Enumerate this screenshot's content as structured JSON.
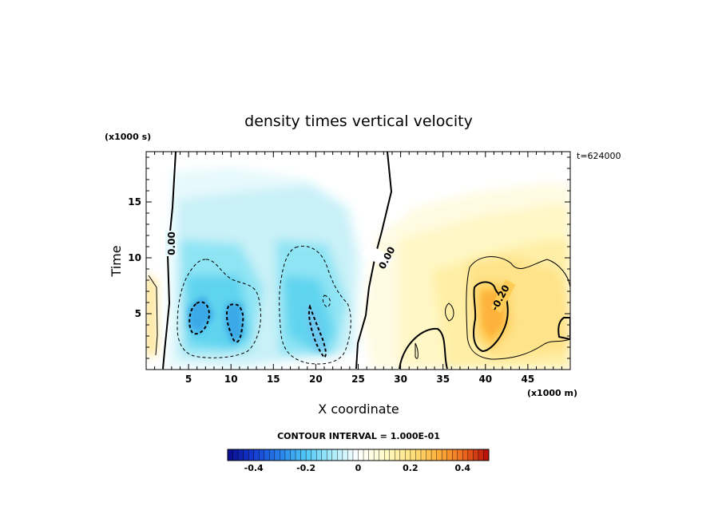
{
  "chart_data": {
    "type": "heatmap",
    "title": "density times vertical velocity",
    "xlabel": "X coordinate",
    "ylabel": "Time",
    "x_unit": "(x1000 m)",
    "y_unit": "(x1000 s)",
    "time_stamp": "t=624000",
    "xlim": [
      0,
      50
    ],
    "ylim": [
      0,
      19.5
    ],
    "x_ticks": [
      5,
      10,
      15,
      20,
      25,
      30,
      35,
      40,
      45
    ],
    "y_ticks": [
      5,
      10,
      15
    ],
    "contour_interval_label": "CONTOUR INTERVAL = 1.000E-01",
    "contour_labels": [
      {
        "text": "0.00",
        "x": 3,
        "y": 11.5
      },
      {
        "text": "0.00",
        "x": 28.5,
        "y": 10.3
      },
      {
        "text": "-0.20",
        "x": 42.8,
        "y": 6.0
      }
    ],
    "colorbar": {
      "min": -0.5,
      "max": 0.5,
      "ticks": [
        -0.4,
        -0.2,
        0,
        0.2,
        0.4
      ],
      "tick_labels": [
        "-0.4",
        "-0.2",
        "0",
        "0.2",
        "0.4"
      ]
    },
    "features": [
      {
        "type": "minimum",
        "x": 7,
        "y": 4.5,
        "value": -0.3
      },
      {
        "type": "minimum",
        "x": 10,
        "y": 3.5,
        "value": -0.3
      },
      {
        "type": "minimum",
        "x": 20,
        "y": 4.0,
        "value": -0.25
      },
      {
        "type": "maximum",
        "x": 41,
        "y": 5.0,
        "value": 0.3
      }
    ]
  }
}
